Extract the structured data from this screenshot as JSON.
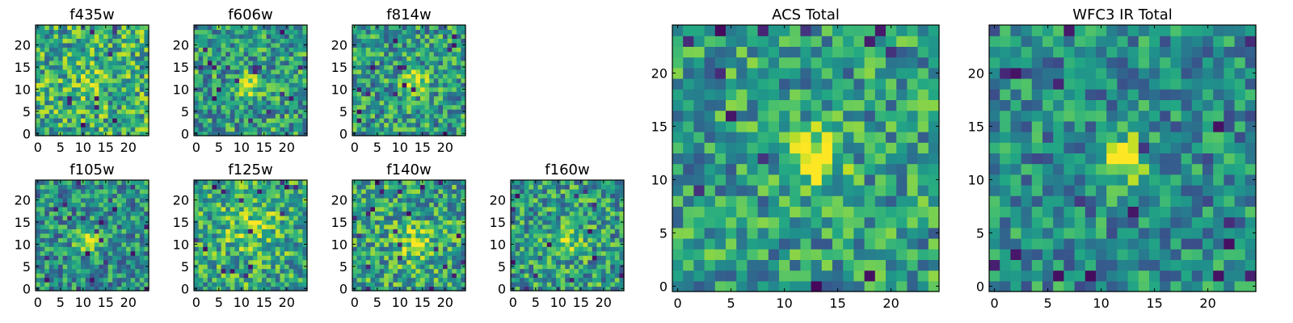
{
  "figure": {
    "description_colormap": "viridis"
  },
  "chart_data": [
    {
      "type": "heatmap",
      "title": "f435w",
      "grid_size": 25,
      "xticks": [
        0,
        5,
        10,
        15,
        20
      ],
      "yticks": [
        0,
        5,
        10,
        15,
        20
      ],
      "xlim": [
        0,
        24
      ],
      "ylim": [
        0,
        24
      ],
      "colormap": "viridis",
      "peak": {
        "x": 12,
        "y": 12,
        "sigma": 2.5,
        "strength": 0.15
      },
      "noise_seed": 11,
      "base": 0.62,
      "noise": 0.32
    },
    {
      "type": "heatmap",
      "title": "f606w",
      "grid_size": 25,
      "xticks": [
        0,
        5,
        10,
        15,
        20
      ],
      "yticks": [
        0,
        5,
        10,
        15,
        20
      ],
      "xlim": [
        0,
        24
      ],
      "ylim": [
        0,
        24
      ],
      "colormap": "viridis",
      "peak": {
        "x": 12,
        "y": 11,
        "sigma": 1.6,
        "strength": 0.45
      },
      "noise_seed": 23,
      "base": 0.55,
      "noise": 0.3
    },
    {
      "type": "heatmap",
      "title": "f814w",
      "grid_size": 25,
      "xticks": [
        0,
        5,
        10,
        15,
        20
      ],
      "yticks": [
        0,
        5,
        10,
        15,
        20
      ],
      "xlim": [
        0,
        24
      ],
      "ylim": [
        0,
        24
      ],
      "colormap": "viridis",
      "peak": {
        "x": 13,
        "y": 12,
        "sigma": 1.8,
        "strength": 0.45
      },
      "noise_seed": 37,
      "base": 0.55,
      "noise": 0.3
    },
    {
      "type": "heatmap",
      "title": "f105w",
      "grid_size": 25,
      "xticks": [
        0,
        5,
        10,
        15,
        20
      ],
      "yticks": [
        0,
        5,
        10,
        15,
        20
      ],
      "xlim": [
        0,
        24
      ],
      "ylim": [
        0,
        24
      ],
      "colormap": "viridis",
      "peak": {
        "x": 11,
        "y": 11,
        "sigma": 1.8,
        "strength": 0.45
      },
      "noise_seed": 41,
      "base": 0.5,
      "noise": 0.28
    },
    {
      "type": "heatmap",
      "title": "f125w",
      "grid_size": 25,
      "xticks": [
        0,
        5,
        10,
        15,
        20
      ],
      "yticks": [
        0,
        5,
        10,
        15,
        20
      ],
      "xlim": [
        0,
        24
      ],
      "ylim": [
        0,
        24
      ],
      "colormap": "viridis",
      "peak": {
        "x": 12,
        "y": 14,
        "sigma": 4.0,
        "strength": 0.2
      },
      "noise_seed": 53,
      "base": 0.6,
      "noise": 0.3
    },
    {
      "type": "heatmap",
      "title": "f140w",
      "grid_size": 25,
      "xticks": [
        0,
        5,
        10,
        15,
        20
      ],
      "yticks": [
        0,
        5,
        10,
        15,
        20
      ],
      "xlim": [
        0,
        24
      ],
      "ylim": [
        0,
        24
      ],
      "colormap": "viridis",
      "peak": {
        "x": 13,
        "y": 10,
        "sigma": 3.0,
        "strength": 0.25
      },
      "noise_seed": 67,
      "base": 0.58,
      "noise": 0.3
    },
    {
      "type": "heatmap",
      "title": "f160w",
      "grid_size": 25,
      "xticks": [
        0,
        5,
        10,
        15,
        20
      ],
      "yticks": [
        0,
        5,
        10,
        15,
        20
      ],
      "xlim": [
        0,
        24
      ],
      "ylim": [
        0,
        24
      ],
      "colormap": "viridis",
      "peak": {
        "x": 12,
        "y": 11,
        "sigma": 2.5,
        "strength": 0.3
      },
      "noise_seed": 79,
      "base": 0.55,
      "noise": 0.3
    },
    {
      "type": "heatmap",
      "title": "ACS Total",
      "grid_size": 25,
      "xticks": [
        0,
        5,
        10,
        15,
        20
      ],
      "yticks": [
        0,
        5,
        10,
        15,
        20
      ],
      "xlim": [
        0,
        24
      ],
      "ylim": [
        0,
        24
      ],
      "colormap": "viridis",
      "peak": {
        "x": 13,
        "y": 12,
        "sigma": 1.8,
        "strength": 0.45
      },
      "noise_seed": 97,
      "base": 0.55,
      "noise": 0.28
    },
    {
      "type": "heatmap",
      "title": "WFC3 IR Total",
      "grid_size": 25,
      "xticks": [
        0,
        5,
        10,
        15,
        20
      ],
      "yticks": [
        0,
        5,
        10,
        15,
        20
      ],
      "xlim": [
        0,
        24
      ],
      "ylim": [
        0,
        24
      ],
      "colormap": "viridis",
      "peak": {
        "x": 12,
        "y": 12,
        "sigma": 1.7,
        "strength": 0.5
      },
      "noise_seed": 113,
      "base": 0.48,
      "noise": 0.26
    }
  ]
}
